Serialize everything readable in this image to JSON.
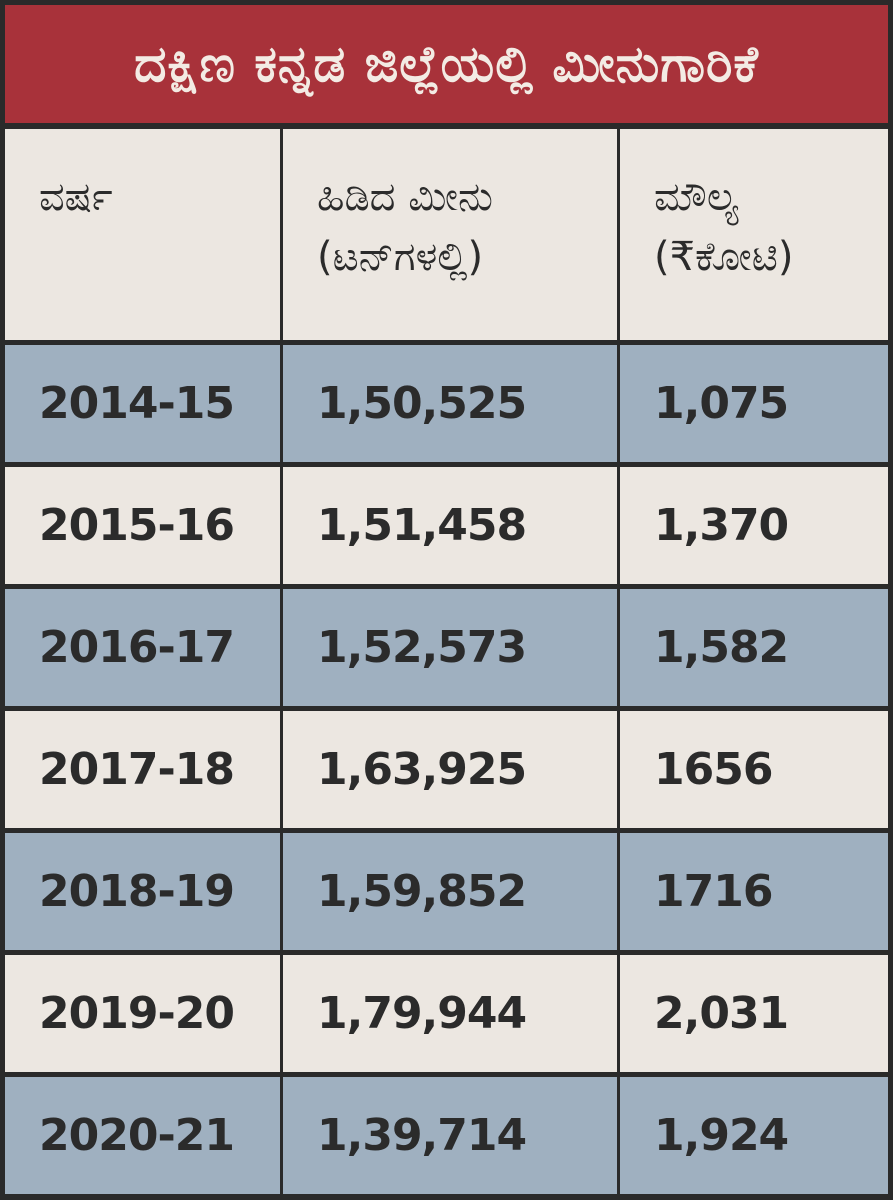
{
  "title": "ದಕ್ಷಿಣ ಕನ್ನಡ ಜಿಲ್ಲೆಯಲ್ಲಿ ಮೀನುಗಾರಿಕೆ",
  "header": {
    "year": "ವರ್ಷ",
    "catch_line1": "ಹಿಡಿದ ಮೀನು",
    "catch_line2": "(ಟನ್‌ಗಳಲ್ಲಿ)",
    "value_line1": "ಮೌಲ್ಯ",
    "value_line2": "(₹ಕೋಟಿ)"
  },
  "rows": [
    {
      "year": "2014-15",
      "catch": "1,50,525",
      "value": "1,075"
    },
    {
      "year": "2015-16",
      "catch": "1,51,458",
      "value": "1,370"
    },
    {
      "year": "2016-17",
      "catch": "1,52,573",
      "value": "1,582"
    },
    {
      "year": "2017-18",
      "catch": "1,63,925",
      "value": "1656"
    },
    {
      "year": "2018-19",
      "catch": "1,59,852",
      "value": "1716"
    },
    {
      "year": "2019-20",
      "catch": "1,79,944",
      "value": "2,031"
    },
    {
      "year": "2020-21",
      "catch": "1,39,714",
      "value": "1,924"
    }
  ],
  "colors": {
    "title_bg": "#a8323a",
    "row_alt_blue": "#9fb0c0",
    "row_alt_light": "#ece7e1",
    "border": "#2a2a2a"
  },
  "chart_data": {
    "type": "table",
    "title": "ದಕ್ಷಿಣ ಕನ್ನಡ ಜಿಲ್ಲೆಯಲ್ಲಿ ಮೀನುಗಾರಿಕೆ",
    "columns": [
      "ವರ್ಷ",
      "ಹಿಡಿದ ಮೀನು (ಟನ್‌ಗಳಲ್ಲಿ)",
      "ಮೌಲ್ಯ (₹ಕೋಟಿ)"
    ],
    "rows": [
      [
        "2014-15",
        150525,
        1075
      ],
      [
        "2015-16",
        151458,
        1370
      ],
      [
        "2016-17",
        152573,
        1582
      ],
      [
        "2017-18",
        163925,
        1656
      ],
      [
        "2018-19",
        159852,
        1716
      ],
      [
        "2019-20",
        179944,
        2031
      ],
      [
        "2020-21",
        139714,
        1924
      ]
    ]
  }
}
